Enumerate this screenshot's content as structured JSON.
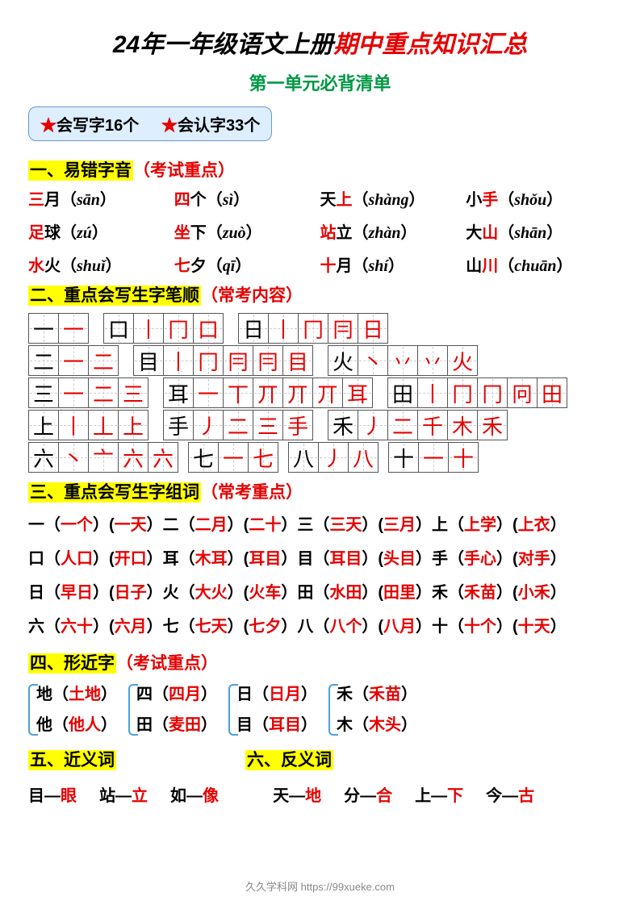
{
  "title": {
    "part1": "24年一年级语文上册",
    "part2": "期中重点知识汇总"
  },
  "subtitle": "第一单元必背清单",
  "badge": {
    "write": "会写字16个",
    "read": "会认字33个",
    "star": "★"
  },
  "sec1": {
    "head": "一、易错字音",
    "note": "（考试重点）"
  },
  "pinyin": [
    {
      "pre": "三",
      "post": "月",
      "pin": "sān"
    },
    {
      "pre": "四",
      "post": "个",
      "pin": "sì"
    },
    {
      "pre2": "天",
      "red": "上",
      "pin": "shàng"
    },
    {
      "pre2": "小",
      "red": "手",
      "pin": "shǒu"
    },
    {
      "pre": "足",
      "post": "球",
      "pin": "zú"
    },
    {
      "pre": "坐",
      "post": "下",
      "pin": "zuò"
    },
    {
      "pre": "站",
      "post": "立",
      "pin": "zhàn"
    },
    {
      "pre2": "大",
      "red": "山",
      "pin": "shān"
    },
    {
      "pre": "水",
      "post": "火",
      "pin": "shuǐ"
    },
    {
      "pre": "七",
      "post": "夕",
      "pin": "qī"
    },
    {
      "pre": "十",
      "post": "月",
      "pin": "shí"
    },
    {
      "pre2": "山",
      "red": "川",
      "pin": "chuān"
    }
  ],
  "sec2": {
    "head": "二、重点会写生字笔顺",
    "note": "（常考内容）"
  },
  "strokes": {
    "row1": [
      {
        "head": "一",
        "steps": [
          "一"
        ]
      },
      {
        "head": "口",
        "steps": [
          "丨",
          "冂",
          "口"
        ]
      },
      {
        "head": "日",
        "steps": [
          "丨",
          "冂",
          "冃",
          "日"
        ]
      }
    ],
    "row2": [
      {
        "head": "二",
        "steps": [
          "一",
          "二"
        ]
      },
      {
        "head": "目",
        "steps": [
          "丨",
          "冂",
          "冃",
          "冃",
          "目"
        ]
      },
      {
        "head": "火",
        "steps": [
          "丶",
          "丷",
          "丷",
          "火"
        ]
      }
    ],
    "row3": [
      {
        "head": "三",
        "steps": [
          "一",
          "二",
          "三"
        ]
      },
      {
        "head": "耳",
        "steps": [
          "一",
          "丅",
          "丌",
          "丌",
          "丌",
          "耳"
        ]
      },
      {
        "head": "田",
        "steps": [
          "丨",
          "冂",
          "冂",
          "冋",
          "田"
        ]
      }
    ],
    "row4": [
      {
        "head": "上",
        "steps": [
          "丨",
          "丄",
          "上"
        ]
      },
      {
        "head": "手",
        "steps": [
          "丿",
          "二",
          "三",
          "手"
        ]
      },
      {
        "head": "禾",
        "steps": [
          "丿",
          "二",
          "千",
          "木",
          "禾"
        ]
      }
    ],
    "row5": [
      {
        "head": "六",
        "steps": [
          "丶",
          "亠",
          "六",
          "六"
        ]
      },
      {
        "head": "七",
        "steps": [
          "一",
          "七"
        ]
      },
      {
        "head": "八",
        "steps": [
          "丿",
          "八"
        ]
      },
      {
        "head": "十",
        "steps": [
          "一",
          "十"
        ]
      }
    ]
  },
  "sec3": {
    "head": "三、重点会写生字组词",
    "note": "（常考重点）"
  },
  "cizu": [
    "一（<r>一个</r>）(<r>一天</r>）二（<r>二月</r>）(<r>二十</r>）三（<r>三天</r>）(<r>三月</r>）上（<r>上学</r>）(<r>上衣</r>）",
    "口（<r>人口</r>）(<r>开口</r>）耳（<r>木耳</r>）(<r>耳目</r>）目（<r>耳目</r>）(<r>头目</r>）手（<r>手心</r>）(<r>对手</r>）",
    "日（<r>早日</r>）(<r>日子</r>）火（<r>大火</r>）(<r>火车</r>）田（<r>水田</r>）(<r>田里</r>）禾（<r>禾苗</r>）(<r>小禾</r>）",
    "六（<r>六十</r>）(<r>六月</r>）七（<r>七天</r>）(<r>七夕</r>）八（<r>八个</r>）(<r>八月</r>）十（<r>十个</r>）(<r>十天</r>）"
  ],
  "sec4": {
    "head": "四、形近字",
    "note": "（考试重点）"
  },
  "near": [
    [
      {
        "c": "地",
        "w": "土地"
      },
      {
        "c": "他",
        "w": "他人"
      }
    ],
    [
      {
        "c": "四",
        "w": "四月"
      },
      {
        "c": "田",
        "w": "麦田"
      }
    ],
    [
      {
        "c": "日",
        "w": "日月"
      },
      {
        "c": "目",
        "w": "耳目"
      }
    ],
    [
      {
        "c": "禾",
        "w": "禾苗"
      },
      {
        "c": "木",
        "w": "木头"
      }
    ]
  ],
  "sec5": {
    "head": "五、近义词"
  },
  "sec6": {
    "head": "六、反义词"
  },
  "syn": [
    {
      "a": "目",
      "b": "眼"
    },
    {
      "a": "站",
      "b": "立"
    },
    {
      "a": "如",
      "b": "像"
    }
  ],
  "ant": [
    {
      "a": "天",
      "b": "地"
    },
    {
      "a": "分",
      "b": "合"
    },
    {
      "a": "上",
      "b": "下"
    },
    {
      "a": "今",
      "b": "古"
    }
  ],
  "footer": "久久学科网 https://99xueke.com",
  "colors": {
    "red": "#e60000",
    "green": "#009944",
    "yellow": "#ffff00",
    "blue": "#4aa0dd",
    "badge_bg": "#ddeeff"
  }
}
